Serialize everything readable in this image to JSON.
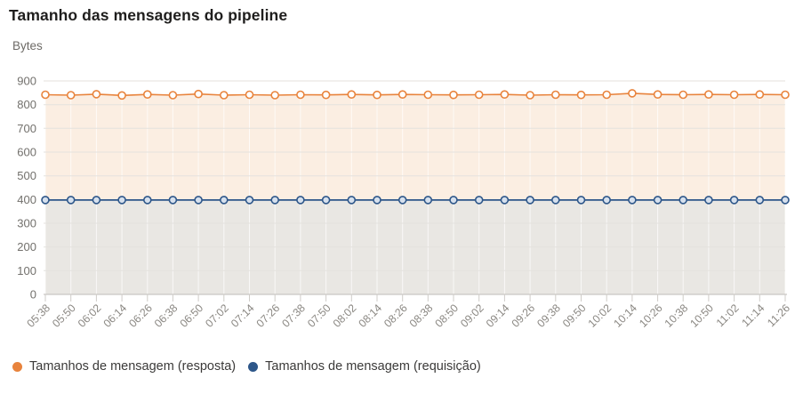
{
  "chart": {
    "title": "Tamanho das mensagens do pipeline",
    "ylabel": "Bytes"
  },
  "legend": [
    {
      "label": "Tamanhos de mensagem (resposta)",
      "color": "#E8833C"
    },
    {
      "label": "Tamanhos de mensagem (requisição)",
      "color": "#2D5689"
    }
  ],
  "chart_data": {
    "type": "area",
    "title": "Tamanho das mensagens do pipeline",
    "xlabel": "",
    "ylabel": "Bytes",
    "ylim": [
      0,
      900
    ],
    "yticks": [
      0,
      100,
      200,
      300,
      400,
      500,
      600,
      700,
      800,
      900
    ],
    "grid": true,
    "legend_position": "bottom",
    "x": [
      "05:38",
      "05:50",
      "06:02",
      "06:14",
      "06:26",
      "06:38",
      "06:50",
      "07:02",
      "07:14",
      "07:26",
      "07:38",
      "07:50",
      "08:02",
      "08:14",
      "08:26",
      "08:38",
      "08:50",
      "09:02",
      "09:14",
      "09:26",
      "09:38",
      "09:50",
      "10:02",
      "10:14",
      "10:26",
      "10:38",
      "10:50",
      "11:02",
      "11:14",
      "11:26"
    ],
    "series": [
      {
        "name": "Tamanhos de mensagem (resposta)",
        "color": "#E8833C",
        "fill": "#FBEEE2",
        "marker_fill": "#FFFFFF",
        "values": [
          842,
          840,
          844,
          839,
          843,
          840,
          845,
          840,
          842,
          840,
          842,
          841,
          843,
          841,
          843,
          842,
          841,
          842,
          843,
          840,
          842,
          841,
          842,
          848,
          843,
          842,
          843,
          842,
          843,
          842
        ]
      },
      {
        "name": "Tamanhos de mensagem (requisição)",
        "color": "#2D5689",
        "fill": "#E9E7E3",
        "marker_fill": "#D6E0ED",
        "values": [
          398,
          398,
          398,
          398,
          398,
          398,
          398,
          398,
          398,
          398,
          398,
          398,
          398,
          398,
          398,
          398,
          398,
          398,
          398,
          398,
          398,
          398,
          398,
          398,
          398,
          398,
          398,
          398,
          398,
          398
        ]
      }
    ]
  }
}
